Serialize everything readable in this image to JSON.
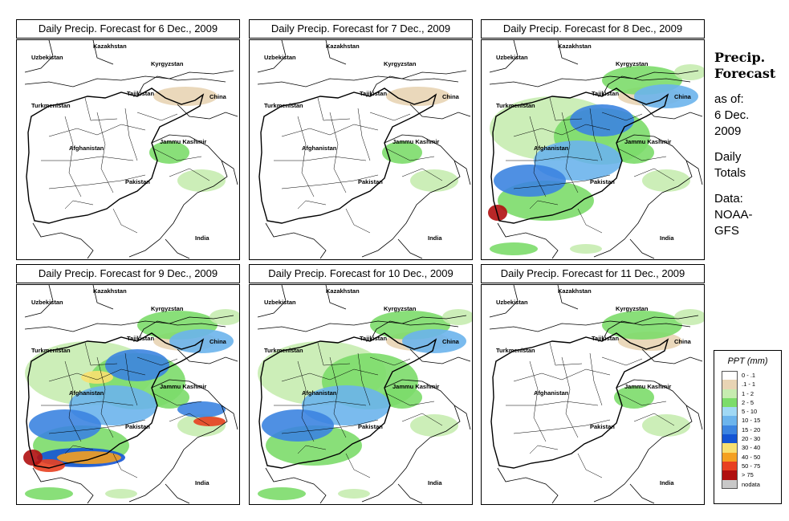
{
  "panels": [
    {
      "title": "Daily Precip. Forecast for  6 Dec., 2009",
      "intensity": 0.15
    },
    {
      "title": "Daily Precip. Forecast for  7 Dec., 2009",
      "intensity": 0.2
    },
    {
      "title": "Daily Precip. Forecast for  8 Dec., 2009",
      "intensity": 0.75
    },
    {
      "title": "Daily Precip. Forecast for  9 Dec., 2009",
      "intensity": 1.0
    },
    {
      "title": "Daily Precip. Forecast for  10 Dec., 2009",
      "intensity": 0.6
    },
    {
      "title": "Daily Precip. Forecast for  11 Dec., 2009",
      "intensity": 0.3
    }
  ],
  "map_labels": {
    "kazakhstan": "Kazakhstan",
    "uzbekistan": "Uzbekistan",
    "kyrgyzstan": "Kyrgyzstan",
    "tajikistan": "Tajikistan",
    "turkmenistan": "Turkmenistan",
    "china": "China",
    "afghanistan": "Afghanistan",
    "jammu_kashmir": "Jammu Kashmir",
    "pakistan": "Pakistan",
    "india": "India"
  },
  "side": {
    "title_line1": "Precip.",
    "title_line2": "Forecast",
    "asof_line1": "as of:",
    "asof_line2": "6 Dec.",
    "asof_line3": "2009",
    "totals_line1": "Daily",
    "totals_line2": "Totals",
    "data_line1": "Data:",
    "data_line2": "NOAA-",
    "data_line3": "GFS"
  },
  "legend": {
    "title": "PPT (mm)",
    "items": [
      {
        "label": "0 - .1",
        "color": "#ffffff"
      },
      {
        "label": ".1 - 1",
        "color": "#e8d4b4"
      },
      {
        "label": "1 - 2",
        "color": "#c6ecb0"
      },
      {
        "label": "2 - 5",
        "color": "#7cdc6a"
      },
      {
        "label": "5 - 10",
        "color": "#a0d8f4"
      },
      {
        "label": "10 - 15",
        "color": "#6cb4ec"
      },
      {
        "label": "15 - 20",
        "color": "#3c84e0"
      },
      {
        "label": "20 - 30",
        "color": "#1454d4"
      },
      {
        "label": "30 - 40",
        "color": "#f8e070"
      },
      {
        "label": "40 - 50",
        "color": "#f4a020"
      },
      {
        "label": "50 - 75",
        "color": "#e84020"
      },
      {
        "label": "> 75",
        "color": "#b01010"
      },
      {
        "label": "nodata",
        "color": "#c8c8c8"
      }
    ]
  }
}
